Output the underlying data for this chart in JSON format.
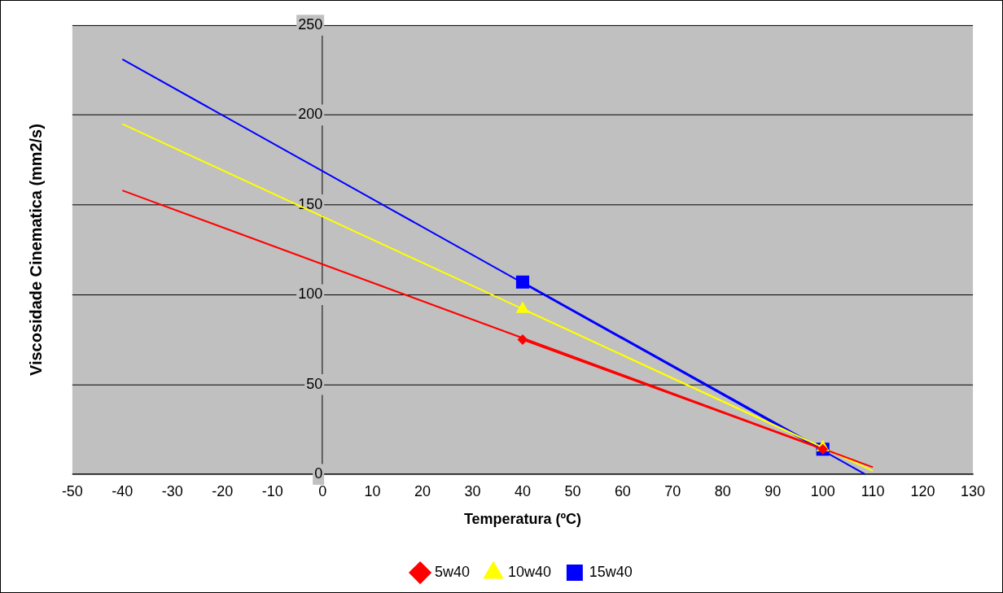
{
  "chart_data": {
    "type": "line",
    "xlabel": "Temperatura (ºC)",
    "ylabel": "Viscosidade Cinematica (mm2/s)",
    "xlim": [
      -50,
      130
    ],
    "xticks": [
      -50,
      -40,
      -30,
      -20,
      -10,
      0,
      10,
      20,
      30,
      40,
      50,
      60,
      70,
      80,
      90,
      100,
      110,
      120,
      130
    ],
    "ylim": [
      0,
      250
    ],
    "yticks": [
      0,
      50,
      100,
      150,
      200,
      250
    ],
    "grid": "y",
    "legend": "bottom",
    "series": [
      {
        "name": "5w40",
        "color": "#ff0000",
        "marker": "diamond",
        "x": [
          40,
          100
        ],
        "values": [
          75,
          14
        ]
      },
      {
        "name": "10w40",
        "color": "#ffff00",
        "marker": "triangle",
        "x": [
          40,
          100
        ],
        "values": [
          92,
          15
        ]
      },
      {
        "name": "15w40",
        "color": "#0000ff",
        "marker": "square",
        "x": [
          40,
          100
        ],
        "values": [
          107,
          14
        ]
      },
      {
        "color": "#ff0000",
        "marker": "none",
        "x": [
          -40,
          110
        ],
        "values": [
          158,
          4
        ]
      },
      {
        "color": "#ffff00",
        "marker": "none",
        "x": [
          -40,
          110
        ],
        "values": [
          195,
          2
        ]
      },
      {
        "color": "#0000ff",
        "marker": "none",
        "x": [
          -40,
          108.5
        ],
        "values": [
          231,
          0
        ]
      }
    ]
  }
}
